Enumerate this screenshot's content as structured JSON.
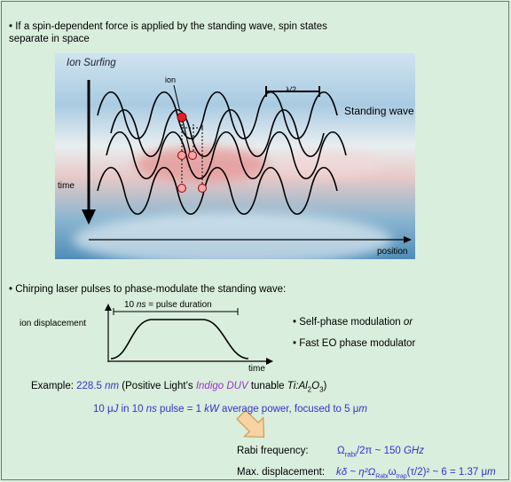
{
  "bullet1": "If a spin-dependent force is applied by the standing wave, spin states separate in space",
  "bullet1_line1": "If a spin-dependent force is applied by the standing wave, spin states",
  "bullet1_line2": "separate in space",
  "diagram": {
    "title": "Ion Surfing",
    "ion_label": "ion",
    "half_wavelength": "λ/2",
    "standing_wave": "Standing wave",
    "time_label": "time",
    "position_label": "position"
  },
  "bullet2": "Chirping laser pulses to phase-modulate the standing wave:",
  "pulse_plot": {
    "ylabel": "ion displacement",
    "duration_prefix": "10 ",
    "duration_unit": "ns",
    "duration_suffix": " = pulse duration",
    "xlabel": "time"
  },
  "options": {
    "opt1_text": "Self-phase modulation ",
    "opt1_or": "or",
    "opt2": "Fast EO phase modulator"
  },
  "example": {
    "prefix": "Example: ",
    "wavelength": "228.5 ",
    "wl_unit": "nm",
    "paren_open": " (Positive Light’s ",
    "product": "Indigo DUV",
    "tunable": " tunable ",
    "crystal": "Ti:Al",
    "crystal_sub2": "2",
    "crystal_o": "O",
    "crystal_sub3": "3",
    "paren_close": ")"
  },
  "power_line": {
    "energy": "10 μ",
    "energy_unit": "J",
    "mid": " in 10 ",
    "ns": "ns",
    "pulse": " pulse = 1 ",
    "kw": "kW",
    "rest": " average power, focused to 5 μ",
    "m": "m"
  },
  "rabi": {
    "label": "Rabi frequency:",
    "omega": "Ω",
    "sub": "rabi",
    "rest": "/2π  ~  150 ",
    "unit": "GHz"
  },
  "displacement": {
    "label": "Max. displacement: ",
    "value_text": "kδ ~ η²Ω",
    "sub1": "Rabi",
    "mid": "ω",
    "sub2": "trap",
    "rest": "(τ/2)² ~ 6 = 1.37 μ",
    "unit": "m"
  },
  "colors": {
    "background": "#d9eedc",
    "accent_blue": "#3333cc",
    "accent_purple": "#9933cc",
    "arrow_fill": "#f6d3a3"
  }
}
